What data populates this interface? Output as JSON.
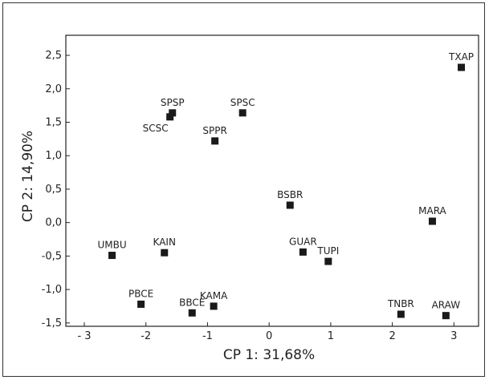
{
  "chart_data": {
    "type": "scatter",
    "title": "",
    "xlabel": "CP 1: 31,68%",
    "ylabel": "CP 2: 14,90%",
    "xlim": [
      -3.3,
      3.4
    ],
    "ylim": [
      -1.55,
      2.8
    ],
    "xticks": [
      {
        "value": -3,
        "label": "- 3"
      },
      {
        "value": -2,
        "label": "-2"
      },
      {
        "value": -1,
        "label": "-1"
      },
      {
        "value": 0,
        "label": "0"
      },
      {
        "value": 1,
        "label": "1"
      },
      {
        "value": 2,
        "label": "2"
      },
      {
        "value": 3,
        "label": "3"
      }
    ],
    "yticks": [
      {
        "value": -1.5,
        "label": "-1,5"
      },
      {
        "value": -1.0,
        "label": "-1,0"
      },
      {
        "value": -0.5,
        "label": "-0,5"
      },
      {
        "value": 0.0,
        "label": "0,0"
      },
      {
        "value": 0.5,
        "label": "0,5"
      },
      {
        "value": 1.0,
        "label": "1,0"
      },
      {
        "value": 1.5,
        "label": "1,5"
      },
      {
        "value": 2.0,
        "label": "2,0"
      },
      {
        "value": 2.5,
        "label": "2,5"
      }
    ],
    "grid": false,
    "marker": "square",
    "marker_color": "#1a1a1a",
    "points": [
      {
        "label": "TXAP",
        "x": 3.12,
        "y": 2.32,
        "label_pos": "above"
      },
      {
        "label": "SPSP",
        "x": -1.57,
        "y": 1.64,
        "label_pos": "above"
      },
      {
        "label": "SCSC",
        "x": -1.61,
        "y": 1.58,
        "label_pos": "below-left"
      },
      {
        "label": "SPSC",
        "x": -0.43,
        "y": 1.64,
        "label_pos": "above"
      },
      {
        "label": "SPPR",
        "x": -0.88,
        "y": 1.22,
        "label_pos": "above"
      },
      {
        "label": "BSBR",
        "x": 0.34,
        "y": 0.26,
        "label_pos": "above"
      },
      {
        "label": "MARA",
        "x": 2.65,
        "y": 0.02,
        "label_pos": "above"
      },
      {
        "label": "UMBU",
        "x": -2.55,
        "y": -0.49,
        "label_pos": "above"
      },
      {
        "label": "KAIN",
        "x": -1.7,
        "y": -0.45,
        "label_pos": "above"
      },
      {
        "label": "GUAR",
        "x": 0.55,
        "y": -0.44,
        "label_pos": "above"
      },
      {
        "label": "TUPI",
        "x": 0.96,
        "y": -0.58,
        "label_pos": "above"
      },
      {
        "label": "PBCE",
        "x": -2.08,
        "y": -1.22,
        "label_pos": "above"
      },
      {
        "label": "BBCE",
        "x": -1.25,
        "y": -1.35,
        "label_pos": "above"
      },
      {
        "label": "KAMA",
        "x": -0.9,
        "y": -1.25,
        "label_pos": "above"
      },
      {
        "label": "TNBR",
        "x": 2.14,
        "y": -1.37,
        "label_pos": "above"
      },
      {
        "label": "ARAW",
        "x": 2.87,
        "y": -1.39,
        "label_pos": "above"
      }
    ]
  }
}
